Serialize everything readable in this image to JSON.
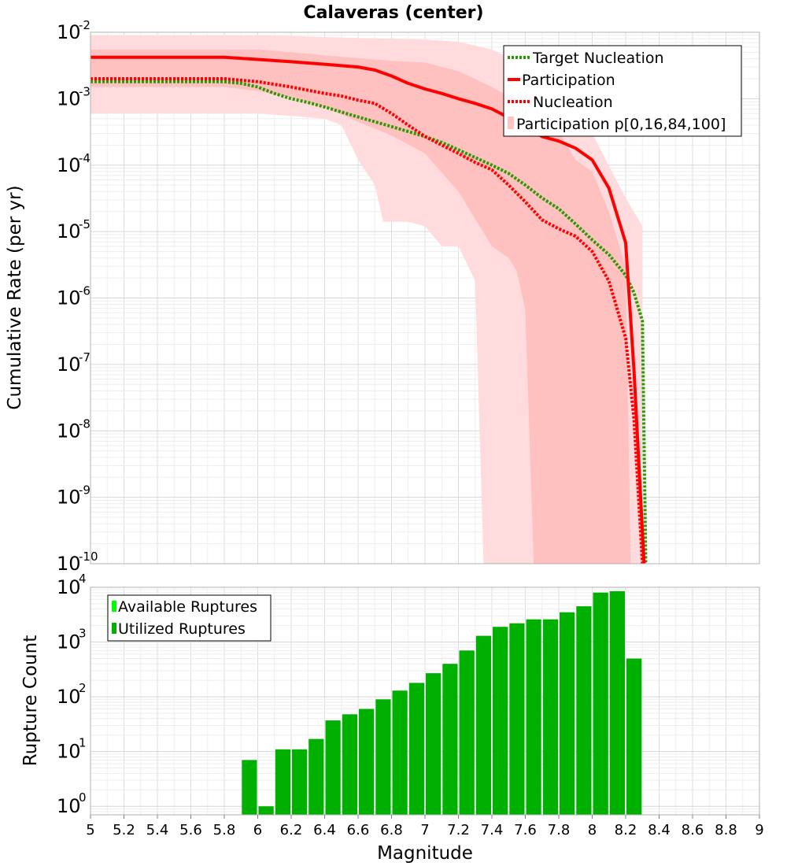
{
  "chart_data": [
    {
      "type": "line",
      "title": "Calaveras (center)",
      "ylabel": "Cumulative Rate (per yr)",
      "yscale": "log",
      "ylim": [
        1e-10,
        0.01
      ],
      "xlim": [
        5,
        9
      ],
      "grid": true,
      "legend_position": "top-right",
      "y_ticks": [
        {
          "base": "10",
          "exp": "-2",
          "value": 0.01
        },
        {
          "base": "10",
          "exp": "-3",
          "value": 0.001
        },
        {
          "base": "10",
          "exp": "-4",
          "value": 0.0001
        },
        {
          "base": "10",
          "exp": "-5",
          "value": 1e-05
        },
        {
          "base": "10",
          "exp": "-6",
          "value": 1e-06
        },
        {
          "base": "10",
          "exp": "-7",
          "value": 1e-07
        },
        {
          "base": "10",
          "exp": "-8",
          "value": 1e-08
        },
        {
          "base": "10",
          "exp": "-9",
          "value": 1e-09
        },
        {
          "base": "10",
          "exp": "-10",
          "value": 1e-10
        }
      ],
      "legend": [
        {
          "label": "Target Nucleation",
          "style": "dotted",
          "color": "#1f9c00"
        },
        {
          "label": "Participation",
          "style": "solid",
          "color": "#ff0000"
        },
        {
          "label": "Nucleation",
          "style": "dotted",
          "color": "#ff0000"
        },
        {
          "label": "Participation p[0,16,84,100]",
          "style": "band",
          "color": "#ffc4c4"
        }
      ],
      "series": [
        {
          "name": "Target Nucleation",
          "color": "#2a9a00",
          "style": "dotted",
          "points": [
            [
              5.0,
              0.0018
            ],
            [
              5.2,
              0.0018
            ],
            [
              5.4,
              0.0018
            ],
            [
              5.6,
              0.0018
            ],
            [
              5.8,
              0.0018
            ],
            [
              5.9,
              0.0017
            ],
            [
              6.0,
              0.0015
            ],
            [
              6.1,
              0.0012
            ],
            [
              6.2,
              0.001
            ],
            [
              6.3,
              0.00088
            ],
            [
              6.4,
              0.00075
            ],
            [
              6.5,
              0.00063
            ],
            [
              6.6,
              0.00053
            ],
            [
              6.7,
              0.00045
            ],
            [
              6.8,
              0.00038
            ],
            [
              6.9,
              0.00032
            ],
            [
              7.0,
              0.00027
            ],
            [
              7.1,
              0.00022
            ],
            [
              7.2,
              0.00017
            ],
            [
              7.3,
              0.00013
            ],
            [
              7.4,
              0.0001
            ],
            [
              7.5,
              7.5e-05
            ],
            [
              7.6,
              5e-05
            ],
            [
              7.7,
              3.2e-05
            ],
            [
              7.8,
              2.2e-05
            ],
            [
              7.9,
              1.3e-05
            ],
            [
              8.0,
              7.5e-06
            ],
            [
              8.1,
              4.5e-06
            ],
            [
              8.2,
              2.2e-06
            ],
            [
              8.25,
              1.2e-06
            ],
            [
              8.3,
              4.5e-07
            ],
            [
              8.32,
              1e-10
            ]
          ]
        },
        {
          "name": "Participation",
          "color": "#ff0000",
          "style": "solid",
          "points": [
            [
              5.0,
              0.0042
            ],
            [
              5.2,
              0.0042
            ],
            [
              5.4,
              0.0042
            ],
            [
              5.6,
              0.0042
            ],
            [
              5.8,
              0.0042
            ],
            [
              6.0,
              0.0039
            ],
            [
              6.2,
              0.0036
            ],
            [
              6.4,
              0.0033
            ],
            [
              6.6,
              0.003
            ],
            [
              6.7,
              0.0027
            ],
            [
              6.8,
              0.0022
            ],
            [
              6.9,
              0.0017
            ],
            [
              7.0,
              0.0014
            ],
            [
              7.1,
              0.0012
            ],
            [
              7.2,
              0.001
            ],
            [
              7.3,
              0.00085
            ],
            [
              7.4,
              0.0007
            ],
            [
              7.5,
              0.00052
            ],
            [
              7.6,
              0.00038
            ],
            [
              7.7,
              0.00027
            ],
            [
              7.8,
              0.00023
            ],
            [
              7.9,
              0.00018
            ],
            [
              8.0,
              0.00012
            ],
            [
              8.1,
              4.5e-05
            ],
            [
              8.2,
              6.8e-06
            ],
            [
              8.25,
              8e-08
            ],
            [
              8.31,
              1e-10
            ]
          ]
        },
        {
          "name": "Nucleation",
          "color": "#ff0000",
          "style": "dotted",
          "points": [
            [
              5.0,
              0.002
            ],
            [
              5.2,
              0.002
            ],
            [
              5.4,
              0.002
            ],
            [
              5.6,
              0.002
            ],
            [
              5.8,
              0.002
            ],
            [
              5.9,
              0.0019
            ],
            [
              6.0,
              0.0018
            ],
            [
              6.2,
              0.0015
            ],
            [
              6.4,
              0.0012
            ],
            [
              6.5,
              0.0011
            ],
            [
              6.6,
              0.00095
            ],
            [
              6.7,
              0.00085
            ],
            [
              6.8,
              0.0006
            ],
            [
              6.9,
              0.0004
            ],
            [
              7.0,
              0.00027
            ],
            [
              7.1,
              0.0002
            ],
            [
              7.2,
              0.00015
            ],
            [
              7.3,
              0.00011
            ],
            [
              7.4,
              8.5e-05
            ],
            [
              7.5,
              5e-05
            ],
            [
              7.6,
              2.8e-05
            ],
            [
              7.7,
              1.5e-05
            ],
            [
              7.8,
              1.1e-05
            ],
            [
              7.9,
              8.5e-06
            ],
            [
              8.0,
              5e-06
            ],
            [
              8.1,
              1.8e-06
            ],
            [
              8.2,
              2.5e-07
            ],
            [
              8.25,
              1.5e-08
            ],
            [
              8.3,
              1e-10
            ]
          ]
        }
      ],
      "bands": [
        {
          "name": "p0-p100",
          "upper": [
            [
              5.0,
              0.009
            ],
            [
              5.2,
              0.009
            ],
            [
              5.4,
              0.009
            ],
            [
              5.6,
              0.009
            ],
            [
              5.8,
              0.009
            ],
            [
              6.0,
              0.009
            ],
            [
              6.2,
              0.0088
            ],
            [
              6.4,
              0.0085
            ],
            [
              6.6,
              0.0082
            ],
            [
              6.8,
              0.008
            ],
            [
              7.0,
              0.0078
            ],
            [
              7.2,
              0.0072
            ],
            [
              7.4,
              0.0055
            ],
            [
              7.6,
              0.0032
            ],
            [
              7.8,
              0.0012
            ],
            [
              8.0,
              0.0003
            ],
            [
              8.2,
              3.2e-05
            ],
            [
              8.3,
              1.2e-05
            ],
            [
              8.3,
              1e-10
            ]
          ],
          "lower": [
            [
              5.0,
              0.0006
            ],
            [
              5.2,
              0.0006
            ],
            [
              5.4,
              0.0006
            ],
            [
              5.6,
              0.0006
            ],
            [
              5.8,
              0.0006
            ],
            [
              6.0,
              0.0006
            ],
            [
              6.2,
              0.00055
            ],
            [
              6.4,
              0.0005
            ],
            [
              6.5,
              0.0004
            ],
            [
              6.6,
              0.00012
            ],
            [
              6.7,
              5e-05
            ],
            [
              6.75,
              1.4e-05
            ],
            [
              6.9,
              1.4e-05
            ],
            [
              7.0,
              1.2e-05
            ],
            [
              7.1,
              6e-06
            ],
            [
              7.2,
              6e-06
            ],
            [
              7.3,
              1.8e-06
            ],
            [
              7.35,
              1e-10
            ]
          ]
        },
        {
          "name": "p16-p84",
          "upper": [
            [
              5.0,
              0.0055
            ],
            [
              5.2,
              0.0055
            ],
            [
              5.4,
              0.0055
            ],
            [
              5.6,
              0.0055
            ],
            [
              5.8,
              0.0055
            ],
            [
              6.0,
              0.0055
            ],
            [
              6.2,
              0.005
            ],
            [
              6.4,
              0.0045
            ],
            [
              6.6,
              0.0041
            ],
            [
              6.8,
              0.0037
            ],
            [
              7.0,
              0.0035
            ],
            [
              7.2,
              0.0026
            ],
            [
              7.4,
              0.0015
            ],
            [
              7.6,
              0.0008
            ],
            [
              7.7,
              0.0005
            ],
            [
              7.8,
              0.00032
            ],
            [
              7.9,
              0.00012
            ],
            [
              8.0,
              8e-05
            ],
            [
              8.1,
              2e-05
            ],
            [
              8.2,
              3e-06
            ],
            [
              8.23,
              1e-10
            ]
          ],
          "lower": [
            [
              5.0,
              0.0015
            ],
            [
              5.2,
              0.0015
            ],
            [
              5.4,
              0.0015
            ],
            [
              5.6,
              0.0015
            ],
            [
              5.8,
              0.0015
            ],
            [
              6.0,
              0.0013
            ],
            [
              6.2,
              0.00105
            ],
            [
              6.4,
              0.00075
            ],
            [
              6.6,
              0.00045
            ],
            [
              6.8,
              0.00028
            ],
            [
              7.0,
              0.00015
            ],
            [
              7.2,
              4e-05
            ],
            [
              7.4,
              6e-06
            ],
            [
              7.5,
              4e-06
            ],
            [
              7.55,
              2.5e-06
            ],
            [
              7.6,
              6.5e-07
            ],
            [
              7.65,
              1e-10
            ]
          ]
        }
      ]
    },
    {
      "type": "bar",
      "ylabel": "Rupture Count",
      "xlabel": "Magnitude",
      "yscale": "log",
      "ylim": [
        0.7,
        10000
      ],
      "xlim": [
        5,
        9
      ],
      "grid": true,
      "legend_position": "top-left",
      "bar_width": 0.1,
      "x_ticks": [
        "5",
        "5.2",
        "5.4",
        "5.6",
        "5.8",
        "6",
        "6.2",
        "6.4",
        "6.6",
        "6.8",
        "7",
        "7.2",
        "7.4",
        "7.6",
        "7.8",
        "8",
        "8.2",
        "8.4",
        "8.6",
        "8.8",
        "9"
      ],
      "y_ticks": [
        {
          "base": "10",
          "exp": "4",
          "value": 10000
        },
        {
          "base": "10",
          "exp": "3",
          "value": 1000
        },
        {
          "base": "10",
          "exp": "2",
          "value": 100
        },
        {
          "base": "10",
          "exp": "1",
          "value": 10
        },
        {
          "base": "10",
          "exp": "0",
          "value": 1
        }
      ],
      "legend": [
        {
          "label": "Available Ruptures",
          "color": "#00ff00"
        },
        {
          "label": "Utilized Ruptures",
          "color": "#00b000"
        }
      ],
      "series": [
        {
          "name": "Utilized Ruptures",
          "color": "#00b000",
          "x": [
            5.95,
            6.05,
            6.15,
            6.25,
            6.35,
            6.45,
            6.55,
            6.65,
            6.75,
            6.85,
            6.95,
            7.05,
            7.15,
            7.25,
            7.35,
            7.45,
            7.55,
            7.65,
            7.75,
            7.85,
            7.95,
            8.05,
            8.15,
            8.25
          ],
          "values": [
            7,
            1,
            11,
            11,
            17,
            37,
            48,
            60,
            90,
            130,
            180,
            270,
            400,
            700,
            1300,
            1900,
            2200,
            2600,
            2600,
            3500,
            4500,
            8000,
            8500,
            500
          ]
        }
      ]
    }
  ]
}
